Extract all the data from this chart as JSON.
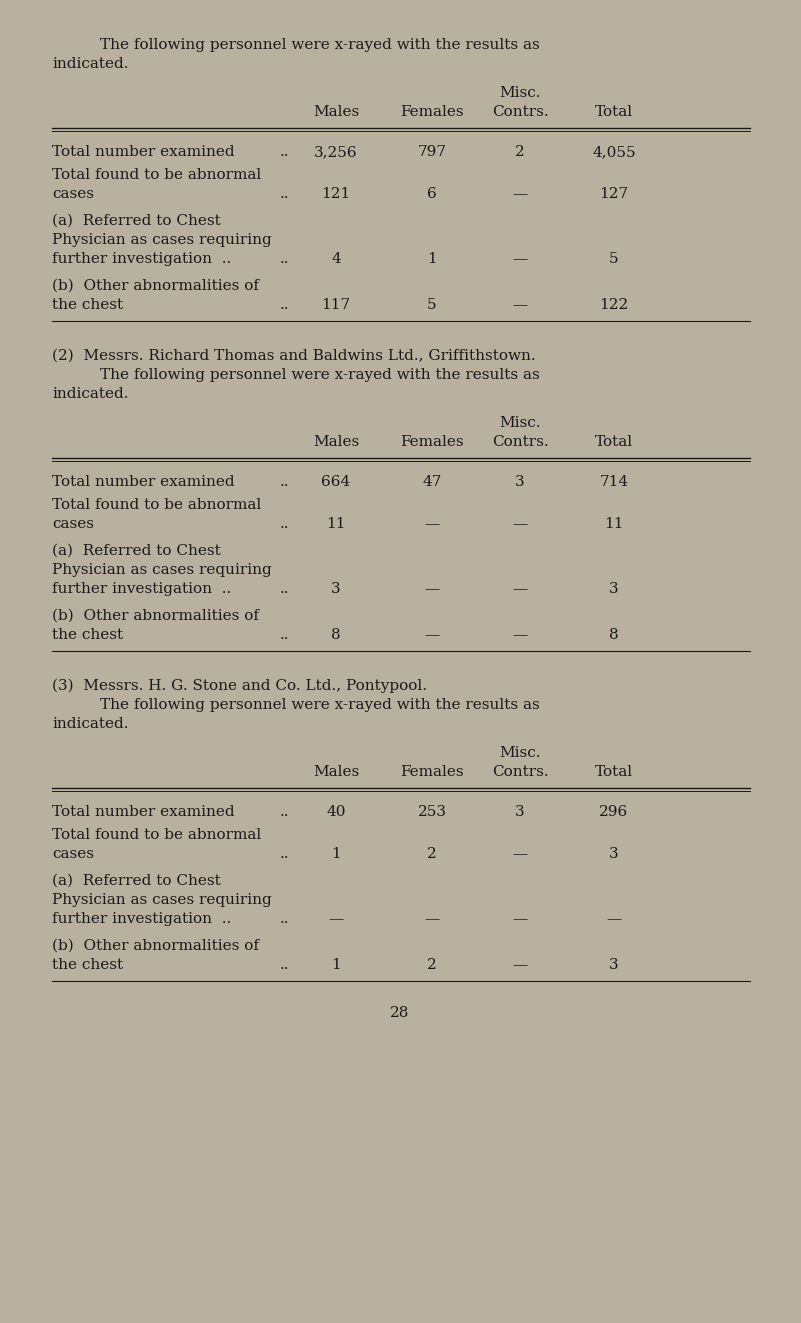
{
  "bg_color": "#b8b19f",
  "text_color": "#1a1a1a",
  "font_size": 11.0,
  "page_number": "28",
  "s1_intro1": "The following personnel were x-rayed with the results as",
  "s1_intro2": "indicated.",
  "s2_title": "(2)  Messrs. Richard Thomas and Baldwins Ltd., Griffithstown.",
  "s2_intro1": "The following personnel were x-rayed with the results as",
  "s2_intro2": "indicated.",
  "s3_title": "(3)  Messrs. H. G. Stone and Co. Ltd., Pontypool.",
  "s3_intro1": "The following personnel were x-rayed with the results as",
  "s3_intro2": "indicated.",
  "col_misc": "Misc.",
  "col_males": "Males",
  "col_females": "Females",
  "col_contrs": "Contrs.",
  "col_total": "Total",
  "sections": [
    {
      "rows": [
        {
          "label1": "Total number examined",
          "label2": null,
          "label3": null,
          "dots": "..",
          "males": "3,256",
          "females": "797",
          "contrs": "2",
          "total": "4,055"
        },
        {
          "label1": "Total found to be abnormal",
          "label2": "cases",
          "label3": null,
          "dots": "..",
          "males": "121",
          "females": "6",
          "contrs": "—",
          "total": "127"
        },
        {
          "label1": "(a)  Referred to Chest",
          "label2": "Physician as cases requiring",
          "label3": "further investigation  ..",
          "dots": "..",
          "males": "4",
          "females": "1",
          "contrs": "—",
          "total": "5"
        },
        {
          "label1": "(b)  Other abnormalities of",
          "label2": "the chest",
          "label3": null,
          "dots": "..",
          "males": "117",
          "females": "5",
          "contrs": "—",
          "total": "122"
        }
      ]
    },
    {
      "rows": [
        {
          "label1": "Total number examined",
          "label2": null,
          "label3": null,
          "dots": "..",
          "males": "664",
          "females": "47",
          "contrs": "3",
          "total": "714"
        },
        {
          "label1": "Total found to be abnormal",
          "label2": "cases",
          "label3": null,
          "dots": "..",
          "males": "11",
          "females": "—",
          "contrs": "—",
          "total": "11"
        },
        {
          "label1": "(a)  Referred to Chest",
          "label2": "Physician as cases requiring",
          "label3": "further investigation  ..",
          "dots": "..",
          "males": "3",
          "females": "—",
          "contrs": "—",
          "total": "3"
        },
        {
          "label1": "(b)  Other abnormalities of",
          "label2": "the chest",
          "label3": null,
          "dots": "..",
          "males": "8",
          "females": "—",
          "contrs": "—",
          "total": "8"
        }
      ]
    },
    {
      "rows": [
        {
          "label1": "Total number examined",
          "label2": null,
          "label3": null,
          "dots": "..",
          "males": "40",
          "females": "253",
          "contrs": "3",
          "total": "296"
        },
        {
          "label1": "Total found to be abnormal",
          "label2": "cases",
          "label3": null,
          "dots": "..",
          "males": "1",
          "females": "2",
          "contrs": "—",
          "total": "3"
        },
        {
          "label1": "(a)  Referred to Chest",
          "label2": "Physician as cases requiring",
          "label3": "further investigation  ..",
          "dots": "..",
          "males": "—",
          "females": "—",
          "contrs": "—",
          "total": "—"
        },
        {
          "label1": "(b)  Other abnormalities of",
          "label2": "the chest",
          "label3": null,
          "dots": "..",
          "males": "1",
          "females": "2",
          "contrs": "—",
          "total": "3"
        }
      ]
    }
  ]
}
